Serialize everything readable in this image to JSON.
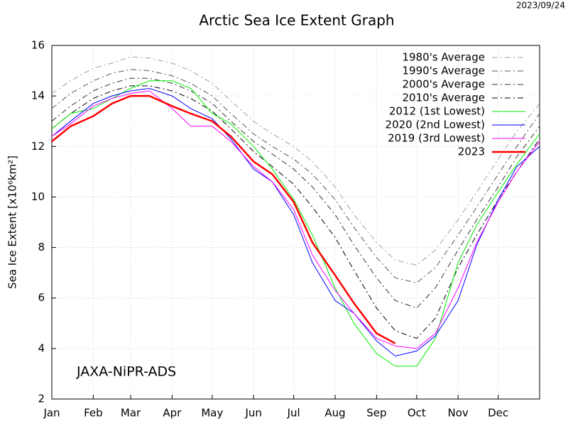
{
  "chart_data": {
    "type": "line",
    "title": "Arctic Sea Ice Extent Graph",
    "date": "2023/09/24",
    "annotation": "JAXA-NiPR-ADS",
    "ylabel": "Sea Ice Extent [x10⁶km²]",
    "x": [
      1,
      15,
      32,
      46,
      60,
      74,
      91,
      105,
      121,
      135,
      152,
      166,
      182,
      196,
      213,
      227,
      244,
      258,
      274,
      288,
      305,
      319,
      335,
      349,
      366
    ],
    "xlim": [
      1,
      366
    ],
    "xticks": [
      {
        "value": 1,
        "label": "Jan"
      },
      {
        "value": 32,
        "label": "Feb"
      },
      {
        "value": 60,
        "label": "Mar"
      },
      {
        "value": 91,
        "label": "Apr"
      },
      {
        "value": 121,
        "label": "May"
      },
      {
        "value": 152,
        "label": "Jun"
      },
      {
        "value": 182,
        "label": "Jul"
      },
      {
        "value": 213,
        "label": "Aug"
      },
      {
        "value": 244,
        "label": "Sep"
      },
      {
        "value": 274,
        "label": "Oct"
      },
      {
        "value": 305,
        "label": "Nov"
      },
      {
        "value": 335,
        "label": "Dec"
      }
    ],
    "ylim": [
      2,
      16
    ],
    "yticks": [
      2,
      4,
      6,
      8,
      10,
      12,
      14,
      16
    ],
    "grid": true,
    "legend": "top-right",
    "series": [
      {
        "name": "1980's Average",
        "color": "#a0a0a0",
        "line_style": "dash-dot",
        "values": [
          14.1,
          14.6,
          15.1,
          15.3,
          15.55,
          15.5,
          15.3,
          15.0,
          14.5,
          13.8,
          13.0,
          12.5,
          12.0,
          11.4,
          10.4,
          9.3,
          8.2,
          7.5,
          7.3,
          7.9,
          9.1,
          10.2,
          11.5,
          12.6,
          13.7
        ]
      },
      {
        "name": "1990's Average",
        "color": "#555555",
        "line_style": "dash-dot",
        "values": [
          13.5,
          14.1,
          14.6,
          14.9,
          15.05,
          15.0,
          14.8,
          14.5,
          14.0,
          13.3,
          12.5,
          12.0,
          11.5,
          10.9,
          9.9,
          8.8,
          7.6,
          6.8,
          6.6,
          7.2,
          8.5,
          9.6,
          10.9,
          12.0,
          13.3
        ]
      },
      {
        "name": "2000's Average",
        "color": "#333333",
        "line_style": "dash-dot",
        "values": [
          13.0,
          13.6,
          14.2,
          14.5,
          14.7,
          14.7,
          14.5,
          14.2,
          13.7,
          13.0,
          12.2,
          11.7,
          11.1,
          10.4,
          9.3,
          8.1,
          6.8,
          5.9,
          5.6,
          6.4,
          7.9,
          9.1,
          10.4,
          11.6,
          12.8
        ]
      },
      {
        "name": "2010's Average",
        "color": "#000000",
        "line_style": "dash-dot",
        "values": [
          12.7,
          13.3,
          13.9,
          14.2,
          14.4,
          14.4,
          14.2,
          13.9,
          13.4,
          12.7,
          11.8,
          11.2,
          10.5,
          9.6,
          8.4,
          7.1,
          5.6,
          4.7,
          4.4,
          5.2,
          7.2,
          8.5,
          9.9,
          11.0,
          12.3
        ]
      },
      {
        "name": "2012 (1st Lowest)",
        "color": "#00ee00",
        "line_style": "solid",
        "values": [
          12.7,
          13.3,
          13.5,
          13.9,
          14.3,
          14.6,
          14.6,
          14.3,
          13.3,
          12.9,
          12.0,
          11.1,
          9.9,
          8.5,
          6.4,
          5.0,
          3.8,
          3.3,
          3.3,
          4.4,
          7.4,
          8.9,
          10.2,
          11.3,
          12.5
        ]
      },
      {
        "name": "2020 (2nd Lowest)",
        "color": "#0000ff",
        "line_style": "solid",
        "values": [
          12.4,
          13.0,
          13.7,
          14.0,
          14.2,
          14.3,
          14.0,
          13.5,
          13.1,
          12.3,
          11.1,
          10.6,
          9.3,
          7.4,
          5.9,
          5.4,
          4.3,
          3.7,
          3.9,
          4.5,
          5.9,
          8.1,
          9.9,
          11.2,
          12.0
        ]
      },
      {
        "name": "2019 (3rd Lowest)",
        "color": "#ff00ff",
        "line_style": "solid",
        "values": [
          12.4,
          12.9,
          13.6,
          13.9,
          14.1,
          14.2,
          13.5,
          12.8,
          12.8,
          12.2,
          11.2,
          10.6,
          9.5,
          7.7,
          6.3,
          5.4,
          4.4,
          4.1,
          4.0,
          4.6,
          6.4,
          8.2,
          9.8,
          11.0,
          12.2
        ]
      },
      {
        "name": "2023",
        "color": "#ff0000",
        "line_style": "thick",
        "values": [
          12.2,
          12.8,
          13.2,
          13.7,
          14.0,
          14.0,
          13.6,
          13.3,
          13.0,
          12.4,
          11.4,
          10.9,
          9.8,
          8.2,
          6.9,
          5.8,
          4.6,
          4.2,
          null,
          null,
          null,
          null,
          null,
          null,
          null
        ]
      }
    ]
  }
}
